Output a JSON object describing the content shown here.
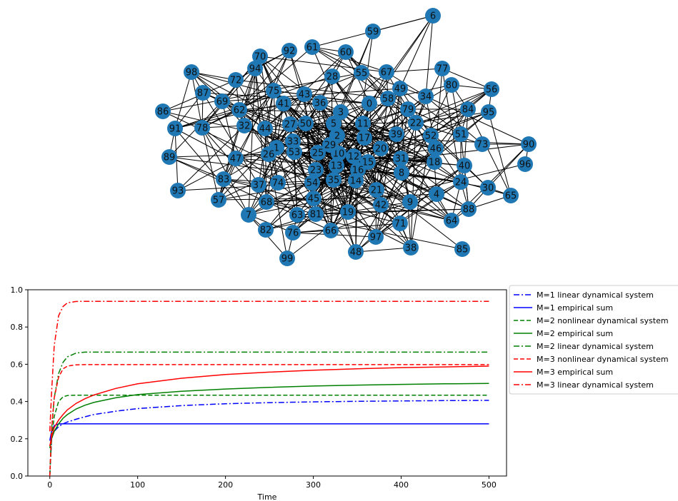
{
  "network": {
    "node_color": "#1f77b4",
    "edge_color": "#000000",
    "nodes": [
      "0",
      "1",
      "2",
      "3",
      "4",
      "5",
      "6",
      "7",
      "8",
      "9",
      "10",
      "11",
      "12",
      "13",
      "14",
      "15",
      "16",
      "17",
      "18",
      "19",
      "20",
      "21",
      "22",
      "23",
      "24",
      "25",
      "26",
      "27",
      "28",
      "29",
      "30",
      "31",
      "32",
      "33",
      "34",
      "35",
      "36",
      "37",
      "38",
      "39",
      "40",
      "41",
      "42",
      "43",
      "44",
      "45",
      "46",
      "47",
      "48",
      "49",
      "50",
      "51",
      "52",
      "53",
      "54",
      "55",
      "56",
      "57",
      "58",
      "59",
      "60",
      "61",
      "62",
      "63",
      "64",
      "65",
      "66",
      "67",
      "68",
      "69",
      "70",
      "71",
      "72",
      "73",
      "74",
      "75",
      "76",
      "77",
      "78",
      "79",
      "80",
      "81",
      "82",
      "83",
      "84",
      "85",
      "86",
      "87",
      "88",
      "89",
      "90",
      "91",
      "92",
      "93",
      "94",
      "95",
      "96",
      "97",
      "98",
      "99"
    ]
  },
  "chart_data": {
    "type": "line",
    "title": "",
    "xlabel": "Time",
    "ylabel": "",
    "xlim": [
      -25,
      520
    ],
    "ylim": [
      0.0,
      1.0
    ],
    "xticks": [
      "0",
      "100",
      "200",
      "300",
      "400",
      "500"
    ],
    "yticks": [
      "0.0",
      "0.2",
      "0.4",
      "0.6",
      "0.8",
      "1.0"
    ],
    "legend_position": "outside-right",
    "x": [
      0,
      2,
      5,
      10,
      15,
      20,
      30,
      40,
      50,
      75,
      100,
      150,
      200,
      250,
      300,
      350,
      400,
      450,
      500
    ],
    "series": [
      {
        "name": "M=1 linear dynamical system",
        "color": "#0000ff",
        "style": "dashdot",
        "values": [
          0.0,
          0.2,
          0.24,
          0.265,
          0.28,
          0.29,
          0.305,
          0.318,
          0.33,
          0.348,
          0.362,
          0.378,
          0.388,
          0.394,
          0.398,
          0.401,
          0.403,
          0.405,
          0.406
        ]
      },
      {
        "name": "M=1 empirical sum",
        "color": "#0000ff",
        "style": "solid",
        "values": [
          0.19,
          0.24,
          0.27,
          0.28,
          0.28,
          0.28,
          0.28,
          0.28,
          0.28,
          0.28,
          0.28,
          0.28,
          0.28,
          0.28,
          0.28,
          0.28,
          0.28,
          0.28,
          0.28
        ]
      },
      {
        "name": "M=2 nonlinear dynamical system",
        "color": "#008000",
        "style": "dashed",
        "values": [
          0.0,
          0.2,
          0.32,
          0.4,
          0.425,
          0.432,
          0.434,
          0.434,
          0.434,
          0.434,
          0.434,
          0.434,
          0.434,
          0.434,
          0.434,
          0.434,
          0.434,
          0.434,
          0.434
        ]
      },
      {
        "name": "M=2 empirical sum",
        "color": "#008000",
        "style": "solid",
        "values": [
          0.15,
          0.2,
          0.24,
          0.28,
          0.31,
          0.33,
          0.36,
          0.38,
          0.395,
          0.42,
          0.437,
          0.455,
          0.467,
          0.476,
          0.483,
          0.488,
          0.492,
          0.495,
          0.497
        ]
      },
      {
        "name": "M=2 linear dynamical system",
        "color": "#008000",
        "style": "dashdot",
        "values": [
          0.0,
          0.25,
          0.42,
          0.55,
          0.61,
          0.64,
          0.66,
          0.665,
          0.665,
          0.665,
          0.665,
          0.665,
          0.665,
          0.665,
          0.665,
          0.665,
          0.665,
          0.665,
          0.665
        ]
      },
      {
        "name": "M=3 nonlinear dynamical system",
        "color": "#ff0000",
        "style": "dashed",
        "values": [
          0.0,
          0.25,
          0.42,
          0.53,
          0.575,
          0.59,
          0.597,
          0.598,
          0.598,
          0.598,
          0.598,
          0.598,
          0.598,
          0.598,
          0.598,
          0.598,
          0.598,
          0.598,
          0.598
        ]
      },
      {
        "name": "M=3 empirical sum",
        "color": "#ff0000",
        "style": "solid",
        "values": [
          0.16,
          0.21,
          0.26,
          0.3,
          0.33,
          0.355,
          0.39,
          0.415,
          0.435,
          0.47,
          0.495,
          0.525,
          0.545,
          0.558,
          0.568,
          0.576,
          0.582,
          0.586,
          0.59
        ]
      },
      {
        "name": "M=3 linear dynamical system",
        "color": "#ff0000",
        "style": "dashdot",
        "values": [
          0.24,
          0.45,
          0.7,
          0.86,
          0.91,
          0.93,
          0.937,
          0.938,
          0.938,
          0.938,
          0.938,
          0.938,
          0.938,
          0.938,
          0.938,
          0.938,
          0.938,
          0.938,
          0.938
        ]
      }
    ]
  }
}
